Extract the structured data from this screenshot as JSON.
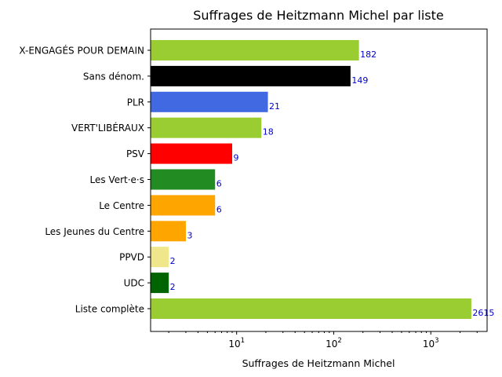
{
  "chart_data": {
    "type": "bar",
    "orientation": "horizontal",
    "title": "Suffrages de Heitzmann Michel par liste",
    "xlabel": "Suffrages de Heitzmann Michel",
    "ylabel": "",
    "xscale": "log",
    "xlim": [
      1.3,
      3800
    ],
    "xticks": [
      10,
      100,
      1000
    ],
    "xtick_labels": [
      {
        "base": "10",
        "exp": "1"
      },
      {
        "base": "10",
        "exp": "2"
      },
      {
        "base": "10",
        "exp": "3"
      }
    ],
    "grid": false,
    "categories": [
      "X-ENGAGÉS POUR DEMAIN",
      "Sans dénom.",
      "PLR",
      "VERT'LIBÉRAUX",
      "PSV",
      "Les Vert·e·s",
      "Le Centre",
      "Les Jeunes du Centre",
      "PPVD",
      "UDC",
      "Liste complète"
    ],
    "values": [
      182,
      149,
      21,
      18,
      9,
      6,
      6,
      3,
      2,
      2,
      2615
    ],
    "value_labels": [
      "182",
      "149",
      "21",
      "18",
      "9",
      "6",
      "6",
      "3",
      "2",
      "2",
      "2615"
    ],
    "colors": [
      "#9acd32",
      "#000000",
      "#4169e1",
      "#9acd32",
      "#ff0000",
      "#228b22",
      "#ffa500",
      "#ffa500",
      "#f0e68c",
      "#006400",
      "#9acd32"
    ],
    "value_label_color": "#0000cc"
  }
}
